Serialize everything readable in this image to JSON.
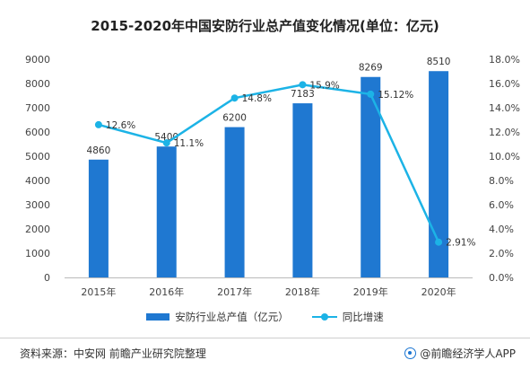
{
  "chart_data": {
    "type": "bar",
    "title": "2015-2020年中国安防行业总产值变化情况(单位：亿元)",
    "categories": [
      "2015年",
      "2016年",
      "2017年",
      "2018年",
      "2019年",
      "2020年"
    ],
    "series": [
      {
        "name": "安防行业总产值（亿元）",
        "type": "bar",
        "axis": "left",
        "values": [
          4860,
          5400,
          6200,
          7183,
          8269,
          8510
        ],
        "labels": [
          "4860",
          "5400",
          "6200",
          "7183",
          "8269",
          "8510"
        ],
        "color": "#1f78d1"
      },
      {
        "name": "同比增速",
        "type": "line",
        "axis": "right",
        "values": [
          12.6,
          11.1,
          14.8,
          15.9,
          15.12,
          2.91
        ],
        "labels": [
          "12.6%",
          "11.1%",
          "14.8%",
          "15.9%",
          "15.12%",
          "2.91%"
        ],
        "color": "#1cb3e6"
      }
    ],
    "y_left": {
      "min": 0,
      "max": 9000,
      "step": 1000,
      "ticks": [
        "0",
        "1000",
        "2000",
        "3000",
        "4000",
        "5000",
        "6000",
        "7000",
        "8000",
        "9000"
      ]
    },
    "y_right": {
      "min": 0,
      "max": 18,
      "step": 2,
      "ticks": [
        "0.0%",
        "2.0%",
        "4.0%",
        "6.0%",
        "8.0%",
        "10.0%",
        "12.0%",
        "14.0%",
        "16.0%",
        "18.0%"
      ]
    },
    "grid": false,
    "legend_position": "bottom"
  },
  "footer": {
    "source": "资料来源：中安网 前瞻产业研究院整理",
    "brand": "@前瞻经济学人APP"
  }
}
